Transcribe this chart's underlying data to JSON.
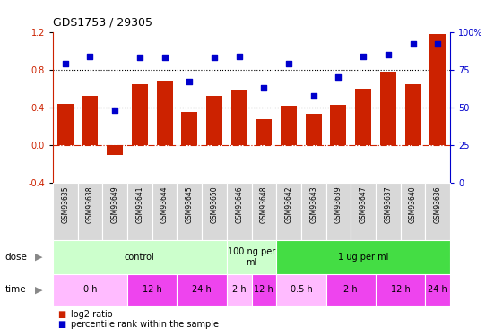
{
  "title": "GDS1753 / 29305",
  "samples": [
    "GSM93635",
    "GSM93638",
    "GSM93649",
    "GSM93641",
    "GSM93644",
    "GSM93645",
    "GSM93650",
    "GSM93646",
    "GSM93648",
    "GSM93642",
    "GSM93643",
    "GSM93639",
    "GSM93647",
    "GSM93637",
    "GSM93640",
    "GSM93636"
  ],
  "log2_ratio": [
    0.44,
    0.52,
    -0.1,
    0.65,
    0.68,
    0.35,
    0.52,
    0.58,
    0.28,
    0.42,
    0.33,
    0.43,
    0.6,
    0.78,
    0.65,
    1.18
  ],
  "pct_rank": [
    79,
    84,
    48,
    83,
    83,
    67,
    83,
    84,
    63,
    79,
    58,
    70,
    84,
    85,
    92,
    92
  ],
  "bar_color": "#cc2200",
  "dot_color": "#0000cc",
  "ylim_left": [
    -0.4,
    1.2
  ],
  "ylim_right": [
    0,
    100
  ],
  "yticks_left": [
    -0.4,
    0.0,
    0.4,
    0.8,
    1.2
  ],
  "yticks_right": [
    0,
    25,
    50,
    75,
    100
  ],
  "hlines": [
    0.4,
    0.8
  ],
  "dose_groups": [
    {
      "label": "control",
      "start": 0,
      "end": 7,
      "color": "#ccffcc"
    },
    {
      "label": "100 ng per\nml",
      "start": 7,
      "end": 9,
      "color": "#ccffcc"
    },
    {
      "label": "1 ug per ml",
      "start": 9,
      "end": 16,
      "color": "#44dd44"
    }
  ],
  "time_groups": [
    {
      "label": "0 h",
      "start": 0,
      "end": 3,
      "color": "#ffbbff"
    },
    {
      "label": "12 h",
      "start": 3,
      "end": 5,
      "color": "#ee44ee"
    },
    {
      "label": "24 h",
      "start": 5,
      "end": 7,
      "color": "#ee44ee"
    },
    {
      "label": "2 h",
      "start": 7,
      "end": 8,
      "color": "#ffbbff"
    },
    {
      "label": "12 h",
      "start": 8,
      "end": 9,
      "color": "#ee44ee"
    },
    {
      "label": "0.5 h",
      "start": 9,
      "end": 11,
      "color": "#ffbbff"
    },
    {
      "label": "2 h",
      "start": 11,
      "end": 13,
      "color": "#ee44ee"
    },
    {
      "label": "12 h",
      "start": 13,
      "end": 15,
      "color": "#ee44ee"
    },
    {
      "label": "24 h",
      "start": 15,
      "end": 16,
      "color": "#ee44ee"
    }
  ],
  "label_dose": "dose",
  "label_time": "time",
  "legend_bar": "log2 ratio",
  "legend_dot": "percentile rank within the sample",
  "bg_color": "#f0f0f0",
  "sample_label_color": "#888888"
}
